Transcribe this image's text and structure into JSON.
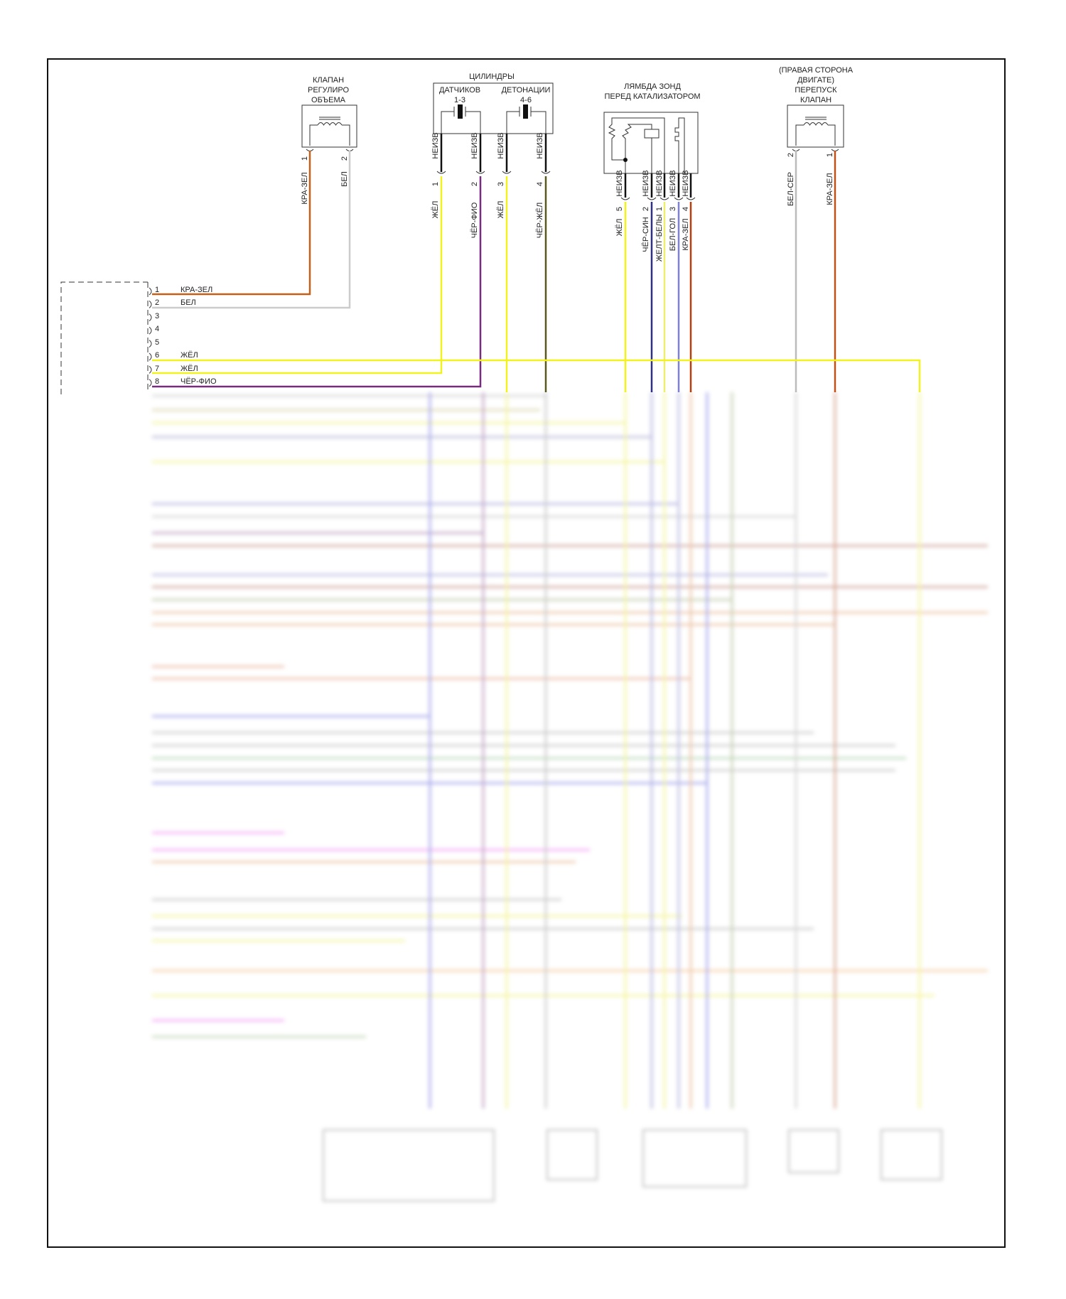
{
  "valve_left": {
    "title": [
      "КЛАПАН",
      "РЕГУЛИРО",
      "ОБЪЕМА"
    ],
    "pins": [
      "1",
      "2"
    ],
    "wires": [
      "КРА-ЗЕЛ",
      "БЕЛ"
    ]
  },
  "cylinders": {
    "title": "ЦИЛИНДРЫ",
    "sub_left": "ДАТЧИКОВ",
    "sub_right": "ДЕТОНАЦИИ",
    "range_left": "1-3",
    "range_right": "4-6",
    "shield": "НЕИЗВ",
    "pins": [
      "1",
      "2",
      "3",
      "4"
    ],
    "wires": [
      "ЖЁЛ",
      "ЧЁР-ФИО",
      "ЖЁЛ",
      "ЧЁР-ЖЁЛ"
    ]
  },
  "lambda": {
    "title": [
      "ЛЯМБДА ЗОНД",
      "ПЕРЕД КАТАЛИЗАТОРОМ"
    ],
    "shield": "НЕИЗВ",
    "pins": [
      "5",
      "2",
      "1",
      "3",
      "4"
    ],
    "wires": [
      "ЖЁЛ",
      "ЧЁР-СИН",
      "ЖЕЛТ-БЕЛЫ",
      "БЕЛ-ГОЛ",
      "КРА-ЗЕЛ"
    ]
  },
  "valve_right": {
    "title": [
      "(ПРАВАЯ СТОРОНА",
      "ДВИГАТЕ)",
      "ПЕРЕПУСК",
      "КЛАПАН"
    ],
    "pins": [
      "2",
      "1"
    ],
    "wires": [
      "БЕЛ-СЕР",
      "КРА-ЗЕЛ"
    ]
  },
  "ecu_connector": {
    "pins": [
      {
        "num": "1",
        "wire": "КРА-ЗЕЛ"
      },
      {
        "num": "2",
        "wire": "БЕЛ"
      },
      {
        "num": "3",
        "wire": ""
      },
      {
        "num": "4",
        "wire": ""
      },
      {
        "num": "5",
        "wire": ""
      },
      {
        "num": "6",
        "wire": "ЖЁЛ"
      },
      {
        "num": "7",
        "wire": "ЖЁЛ"
      },
      {
        "num": "8",
        "wire": "ЧЁР-ФИО"
      }
    ]
  },
  "wire_colors": {
    "kra_zel": "#c0601a",
    "bel": "#cccccc",
    "zhel": "#f2f21e",
    "cher_fio": "#7a2a80",
    "cher_zhel": "#5a5a20",
    "cher_sin": "#303080",
    "zhelt_bel": "#eeee70",
    "bel_gol": "#8080d0",
    "bel_ser": "#bbbbbb"
  }
}
